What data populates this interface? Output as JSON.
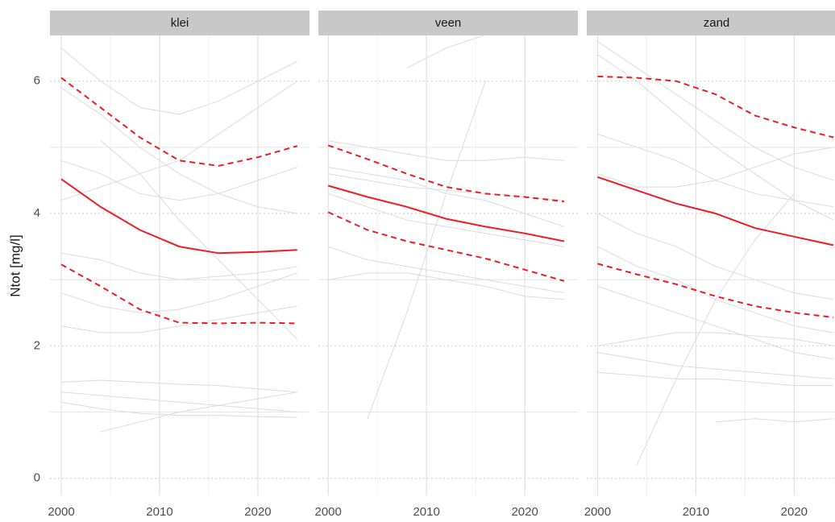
{
  "chart_data": [
    {
      "type": "line",
      "title": "klei",
      "ylabel": "Ntot [mg/l]",
      "x": [
        2000,
        2004,
        2008,
        2012,
        2016,
        2020,
        2024
      ],
      "xlim": [
        1998.85,
        2025.25
      ],
      "xticks": [
        2000,
        2010,
        2020
      ],
      "ylim": [
        -0.26,
        6.69
      ],
      "yticks": [
        0,
        2,
        4,
        6
      ],
      "grid": true,
      "series": [
        {
          "color": "#dcdcdc",
          "values": [
            5.9,
            5.5,
            5.0,
            4.6,
            4.3,
            4.1,
            4.0
          ]
        },
        {
          "color": "#dcdcdc",
          "values": [
            1.45,
            1.48,
            1.45,
            1.42,
            1.4,
            1.35,
            1.3
          ]
        },
        {
          "color": "#dcdcdc",
          "values": [
            1.15,
            1.05,
            0.98,
            0.95,
            0.95,
            0.93,
            0.92
          ]
        },
        {
          "color": "#dcdcdc",
          "values": [
            null,
            0.7,
            0.85,
            1.0,
            1.1,
            1.2,
            1.3
          ]
        },
        {
          "color": "#dcdcdc",
          "values": [
            2.8,
            2.6,
            2.5,
            2.55,
            2.7,
            2.9,
            3.1
          ]
        },
        {
          "color": "#dcdcdc",
          "values": [
            4.2,
            4.4,
            4.6,
            4.8,
            5.2,
            5.6,
            6.0
          ]
        },
        {
          "color": "#dcdcdc",
          "values": [
            3.4,
            3.3,
            3.1,
            3.0,
            3.05,
            3.1,
            3.2
          ]
        },
        {
          "color": "#dcdcdc",
          "values": [
            6.5,
            6.0,
            5.6,
            5.5,
            5.7,
            6.0,
            6.3
          ]
        },
        {
          "color": "#dcdcdc",
          "values": [
            2.3,
            2.2,
            2.2,
            2.3,
            2.4,
            2.5,
            2.6
          ]
        },
        {
          "color": "#dcdcdc",
          "values": [
            null,
            5.1,
            4.6,
            3.9,
            3.3,
            2.7,
            2.1
          ]
        },
        {
          "color": "#dcdcdc",
          "values": [
            4.8,
            4.6,
            4.3,
            4.2,
            4.3,
            4.5,
            4.7
          ]
        },
        {
          "color": "#dcdcdc",
          "values": [
            1.3,
            1.25,
            1.2,
            1.15,
            1.1,
            1.05,
            1.0
          ]
        },
        {
          "color": "#ee1c25",
          "values": [
            4.52,
            4.1,
            3.75,
            3.5,
            3.4,
            3.42,
            3.45
          ]
        },
        {
          "color": "#ee1c25",
          "dash": true,
          "values": [
            6.05,
            5.6,
            5.15,
            4.8,
            4.72,
            4.85,
            5.02
          ]
        },
        {
          "color": "#ee1c25",
          "dash": true,
          "values": [
            3.23,
            2.9,
            2.55,
            2.35,
            2.34,
            2.35,
            2.34
          ]
        }
      ]
    },
    {
      "type": "line",
      "title": "veen",
      "x": [
        2000,
        2004,
        2008,
        2012,
        2016,
        2020,
        2024
      ],
      "xlim": [
        1999.0,
        2025.4
      ],
      "xticks": [
        2000,
        2010,
        2020
      ],
      "ylim": [
        -0.26,
        6.69
      ],
      "yticks": [
        0,
        2,
        4,
        6
      ],
      "grid": true,
      "series": [
        {
          "color": "#dcdcdc",
          "values": [
            null,
            0.9,
            2.5,
            4.3,
            6.0,
            null,
            null
          ]
        },
        {
          "color": "#dcdcdc",
          "values": [
            5.1,
            5.0,
            4.9,
            4.8,
            4.8,
            4.85,
            4.8
          ]
        },
        {
          "color": "#dcdcdc",
          "values": [
            3.5,
            3.3,
            3.2,
            3.1,
            3.0,
            2.9,
            2.8
          ]
        },
        {
          "color": "#dcdcdc",
          "values": [
            4.7,
            4.6,
            4.5,
            4.3,
            4.2,
            4.0,
            3.8
          ]
        },
        {
          "color": "#dcdcdc",
          "values": [
            3.0,
            3.1,
            3.1,
            3.0,
            2.9,
            2.75,
            2.7
          ]
        },
        {
          "color": "#dcdcdc",
          "values": [
            null,
            null,
            6.2,
            6.5,
            6.7,
            null,
            null
          ]
        },
        {
          "color": "#dcdcdc",
          "values": [
            4.3,
            4.1,
            3.9,
            3.8,
            3.7,
            3.6,
            3.5
          ]
        },
        {
          "color": "#dcdcdc",
          "values": [
            4.6,
            4.5,
            4.4,
            4.35,
            4.3,
            4.25,
            4.2
          ]
        },
        {
          "color": "#ee1c25",
          "values": [
            4.42,
            4.25,
            4.1,
            3.92,
            3.8,
            3.7,
            3.58
          ]
        },
        {
          "color": "#ee1c25",
          "dash": true,
          "values": [
            5.03,
            4.82,
            4.6,
            4.4,
            4.3,
            4.25,
            4.18
          ]
        },
        {
          "color": "#ee1c25",
          "dash": true,
          "values": [
            4.02,
            3.75,
            3.58,
            3.45,
            3.32,
            3.15,
            2.98
          ]
        }
      ]
    },
    {
      "type": "line",
      "title": "zand",
      "x": [
        2000,
        2004,
        2008,
        2012,
        2016,
        2020,
        2024
      ],
      "xlim": [
        1998.9,
        2025.3
      ],
      "xticks": [
        2000,
        2010,
        2020
      ],
      "ylim": [
        -0.26,
        6.69
      ],
      "yticks": [
        0,
        2,
        4,
        6
      ],
      "grid": true,
      "series": [
        {
          "color": "#dcdcdc",
          "values": [
            6.6,
            6.2,
            5.8,
            5.4,
            5.0,
            4.7,
            4.5
          ]
        },
        {
          "color": "#dcdcdc",
          "values": [
            2.0,
            2.1,
            2.2,
            2.2,
            2.15,
            2.1,
            2.0
          ]
        },
        {
          "color": "#dcdcdc",
          "values": [
            null,
            0.2,
            1.5,
            2.7,
            3.6,
            4.3,
            null
          ]
        },
        {
          "color": "#dcdcdc",
          "values": [
            3.5,
            3.2,
            3.0,
            2.7,
            2.5,
            2.3,
            2.2
          ]
        },
        {
          "color": "#dcdcdc",
          "values": [
            1.9,
            1.8,
            1.7,
            1.65,
            1.6,
            1.55,
            1.5
          ]
        },
        {
          "color": "#dcdcdc",
          "values": [
            5.2,
            5.0,
            4.8,
            4.5,
            4.3,
            4.2,
            4.1
          ]
        },
        {
          "color": "#dcdcdc",
          "values": [
            4.0,
            3.7,
            3.5,
            3.2,
            3.0,
            2.8,
            2.7
          ]
        },
        {
          "color": "#dcdcdc",
          "values": [
            null,
            null,
            null,
            0.85,
            0.9,
            0.85,
            0.9
          ]
        },
        {
          "color": "#dcdcdc",
          "values": [
            2.9,
            2.7,
            2.5,
            2.3,
            2.1,
            1.9,
            1.8
          ]
        },
        {
          "color": "#dcdcdc",
          "values": [
            6.4,
            6.0,
            5.5,
            5.0,
            4.6,
            4.2,
            3.9
          ]
        },
        {
          "color": "#dcdcdc",
          "values": [
            1.6,
            1.55,
            1.5,
            1.5,
            1.45,
            1.4,
            1.4
          ]
        },
        {
          "color": "#dcdcdc",
          "values": [
            4.6,
            4.4,
            4.4,
            4.5,
            4.7,
            4.9,
            5.0
          ]
        },
        {
          "color": "#ee1c25",
          "values": [
            4.55,
            4.35,
            4.15,
            4.0,
            3.78,
            3.65,
            3.52
          ]
        },
        {
          "color": "#ee1c25",
          "dash": true,
          "values": [
            6.07,
            6.05,
            6.0,
            5.8,
            5.48,
            5.3,
            5.15
          ]
        },
        {
          "color": "#ee1c25",
          "dash": true,
          "values": [
            3.24,
            3.08,
            2.93,
            2.75,
            2.6,
            2.5,
            2.43
          ]
        }
      ]
    }
  ]
}
